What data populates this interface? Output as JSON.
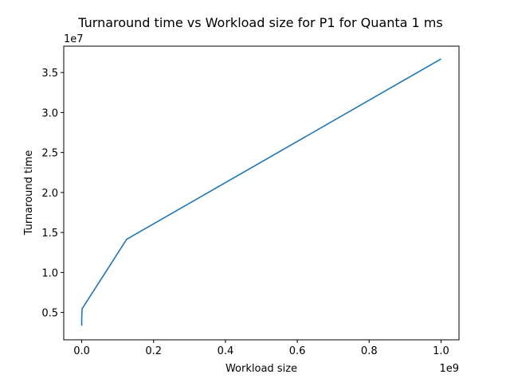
{
  "chart_data": {
    "type": "line",
    "title": "Turnaround time vs Workload size for P1 for Quanta 1 ms",
    "xlabel": "Workload size",
    "ylabel": "Turnaround time",
    "x_offset_label": "1e9",
    "y_offset_label": "1e7",
    "x_scale": 1000000000,
    "y_scale": 10000000,
    "xlim": [
      -50000000,
      1050000000
    ],
    "ylim": [
      1580000,
      38300000
    ],
    "x_ticks": [
      0,
      200000000,
      400000000,
      600000000,
      800000000,
      1000000000
    ],
    "x_tick_labels": [
      "0.0",
      "0.2",
      "0.4",
      "0.6",
      "0.8",
      "1.0"
    ],
    "y_ticks": [
      5000000,
      10000000,
      15000000,
      20000000,
      25000000,
      30000000,
      35000000
    ],
    "y_tick_labels": [
      "0.5",
      "1.0",
      "1.5",
      "2.0",
      "2.5",
      "3.0",
      "3.5"
    ],
    "grid": false,
    "series": [
      {
        "color": "#1f77b4",
        "x": [
          1000,
          10000,
          100000,
          1000000,
          125000000,
          1000000000
        ],
        "y": [
          3350000,
          3650000,
          4350000,
          5450000,
          14150000,
          36700000
        ]
      }
    ]
  }
}
